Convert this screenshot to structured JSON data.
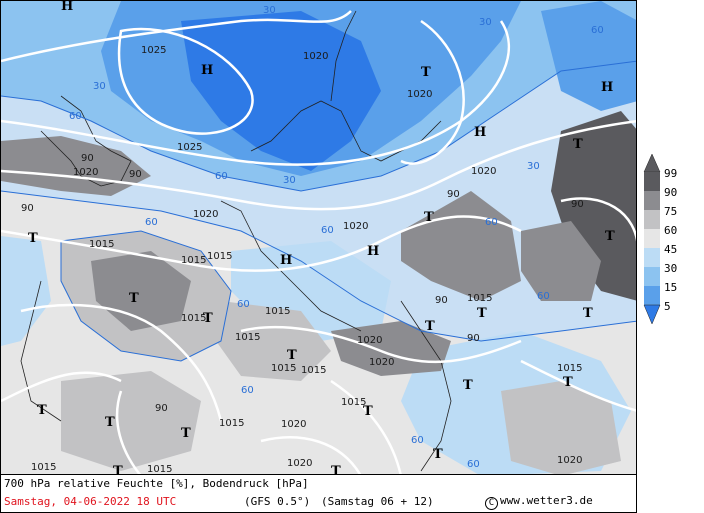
{
  "map": {
    "pressure_labels": [
      "1025",
      "1020",
      "1025",
      "1020",
      "1020",
      "1020",
      "1020",
      "1015",
      "1015",
      "1015",
      "1015",
      "1015",
      "1015",
      "1020",
      "1020",
      "1015",
      "1015",
      "1015",
      "1020",
      "1015",
      "1015",
      "1015",
      "1020",
      "1015",
      "1020",
      "1015",
      "1020"
    ],
    "humidity_labels": [
      "30",
      "30",
      "30",
      "30",
      "30",
      "60",
      "60",
      "60",
      "60",
      "60",
      "60",
      "60",
      "90",
      "90",
      "90",
      "90",
      "90",
      "90",
      "90",
      "90",
      "60",
      "60",
      "60",
      "60"
    ],
    "high_symbol": "H",
    "low_symbol": "T"
  },
  "footer": {
    "title": "700 hPa relative Feuchte [%], Bodendruck [hPa]",
    "date": "Samstag, 04-06-2022  18 UTC",
    "model": "(GFS 0.5°)",
    "run": "(Samstag 06 + 12)",
    "credit": "www.wetter3.de",
    "credit_symbol": "C"
  },
  "legend": {
    "levels": [
      "99",
      "90",
      "75",
      "60",
      "45",
      "30",
      "15",
      "5"
    ],
    "colors": [
      "#5a5a5e",
      "#8c8c90",
      "#c2c2c4",
      "#e6e6e6",
      "#bcdcf5",
      "#8cc3f0",
      "#5aa0ea",
      "#2e7ae6"
    ]
  }
}
